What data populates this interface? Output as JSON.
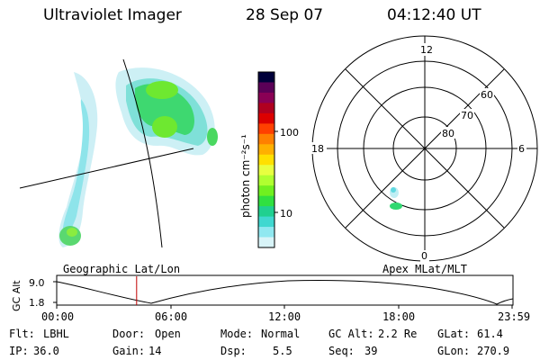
{
  "header": {
    "instrument": "Ultraviolet Imager",
    "date": "28 Sep 07",
    "time": "04:12:40 UT"
  },
  "colorbar": {
    "label": "photon cm⁻²s⁻¹",
    "ticks": [
      "100",
      "10"
    ],
    "colors": [
      "#00003a",
      "#5a0057",
      "#8a0055",
      "#b00020",
      "#dc0000",
      "#ff4000",
      "#ff8000",
      "#ffb000",
      "#ffe000",
      "#e8ff40",
      "#b0ff30",
      "#70f020",
      "#30e040",
      "#20d090",
      "#40d8d0",
      "#90e8f0",
      "#d8f4f8"
    ]
  },
  "polar": {
    "labels": {
      "top": "12",
      "bottom": "0",
      "left": "18",
      "right": "6"
    },
    "lat_labels": [
      "60",
      "70",
      "80"
    ]
  },
  "labels": {
    "geographic": "Geographic Lat/Lon",
    "apex": "Apex MLat/MLT"
  },
  "altplot": {
    "ylabel": "GC Alt",
    "yticks": [
      "9.0",
      "1.8"
    ],
    "xticks": [
      "00:00",
      "06:00",
      "12:00",
      "18:00",
      "23:59"
    ],
    "marker_time_hours": 4.21
  },
  "info": {
    "row1": {
      "flt_label": "Flt:",
      "flt_value": "LBHL",
      "door_label": "Door:",
      "door_value": "Open",
      "mode_label": "Mode:",
      "mode_value": "Normal",
      "gcalt_label": "GC Alt:",
      "gcalt_value": "2.2 Re",
      "glat_label": "GLat:",
      "glat_value": "61.4"
    },
    "row2": {
      "ip_label": "IP:",
      "ip_value": "36.0",
      "gain_label": "Gain:",
      "gain_value": "14",
      "dsp_label": "Dsp:",
      "dsp_value": "5.5",
      "seq_label": "Seq:",
      "seq_value": "39",
      "glon_label": "GLon:",
      "glon_value": "270.9"
    }
  }
}
